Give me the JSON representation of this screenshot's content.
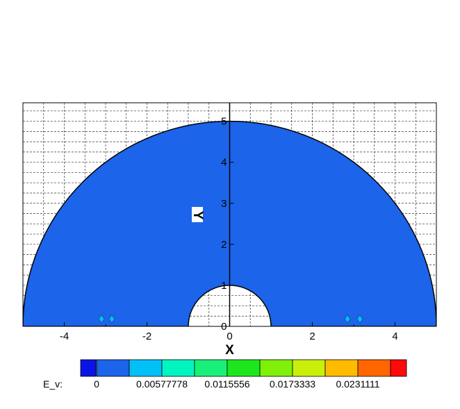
{
  "chart_data": {
    "type": "heatmap",
    "xlabel": "X",
    "ylabel": "Y",
    "xlim": [
      -5,
      5
    ],
    "ylim": [
      0,
      5.45
    ],
    "x_ticks": [
      -4,
      -2,
      0,
      2,
      4
    ],
    "y_ticks": [
      0,
      1,
      2,
      3,
      4,
      5
    ],
    "grid": true,
    "domain": {
      "shape": "half-annulus",
      "outer_radius": 5,
      "inner_radius": 1
    },
    "field": "E_v",
    "field_value_fill": "#1c64e9",
    "features": [
      {
        "x": -3.1,
        "y": 0.18
      },
      {
        "x": -2.85,
        "y": 0.18
      },
      {
        "x": 2.85,
        "y": 0.18
      },
      {
        "x": 3.15,
        "y": 0.18
      }
    ],
    "legend": {
      "title": "E_v:",
      "placement": "bottom",
      "levels": [
        0,
        0.00288889,
        0.00577778,
        0.00866667,
        0.0115556,
        0.0144444,
        0.0173333,
        0.0202222,
        0.0231111,
        0.026
      ],
      "tick_labels": [
        "0",
        "0.00577778",
        "0.0115556",
        "0.0173333",
        "0.0231111"
      ],
      "colors": [
        "#0a14e6",
        "#1c64e9",
        "#00c0f5",
        "#00f5c0",
        "#19f07a",
        "#1ee61e",
        "#80f00a",
        "#c8f00a",
        "#ffbb00",
        "#ff6600",
        "#ff0a0a"
      ]
    }
  }
}
